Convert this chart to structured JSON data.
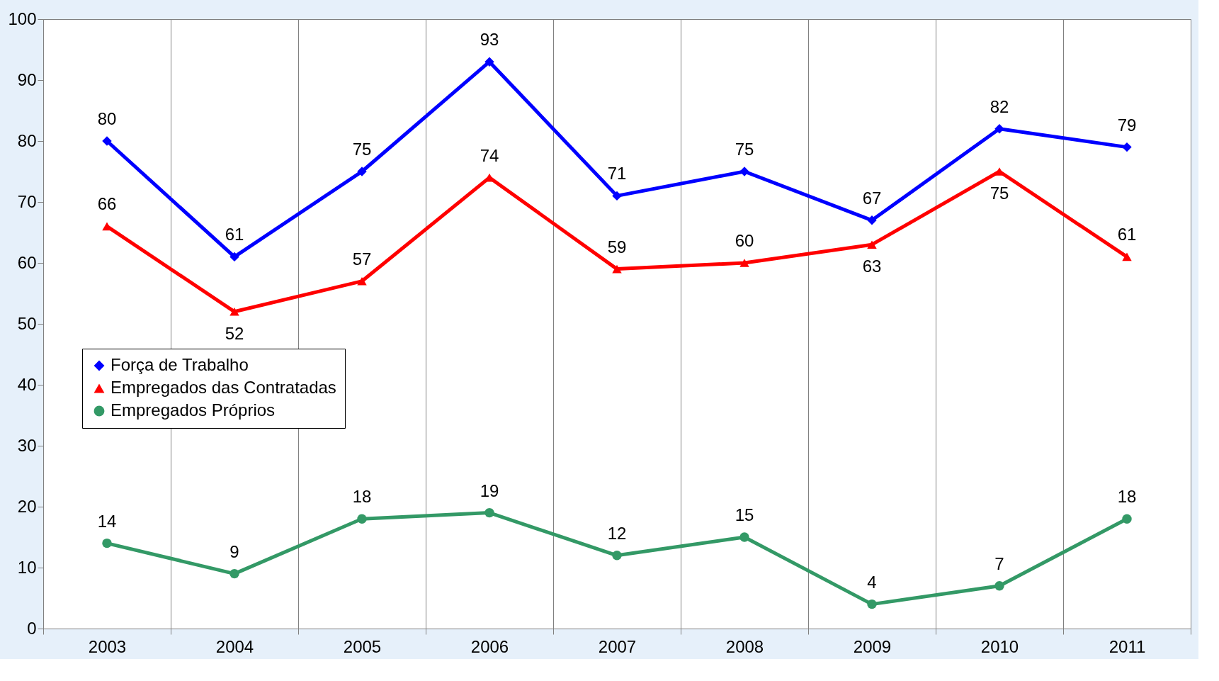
{
  "chart_data": {
    "type": "line",
    "categories": [
      "2003",
      "2004",
      "2005",
      "2006",
      "2007",
      "2008",
      "2009",
      "2010",
      "2011"
    ],
    "series": [
      {
        "name": "Força de Trabalho",
        "color": "#0000ff",
        "marker": "diamond",
        "values": [
          80,
          61,
          75,
          93,
          71,
          75,
          67,
          82,
          79
        ]
      },
      {
        "name": "Empregados das Contratadas",
        "color": "#ff0000",
        "marker": "triangle",
        "values": [
          66,
          52,
          57,
          74,
          59,
          60,
          63,
          75,
          61
        ]
      },
      {
        "name": "Empregados Próprios",
        "color": "#339966",
        "marker": "circle",
        "values": [
          14,
          9,
          18,
          19,
          12,
          15,
          4,
          7,
          18
        ]
      }
    ],
    "ylim": [
      0,
      100
    ],
    "yticks": [
      0,
      10,
      20,
      30,
      40,
      50,
      60,
      70,
      80,
      90,
      100
    ],
    "grid": "x",
    "legend": "left",
    "data_labels": true,
    "line_style": "solid"
  }
}
